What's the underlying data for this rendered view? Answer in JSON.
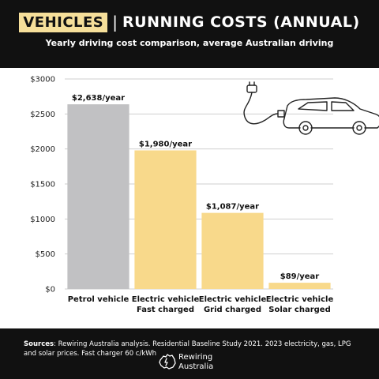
{
  "header": {
    "title_highlight": "VEHICLES",
    "title_separator": "|",
    "title_main": "RUNNING COSTS (ANNUAL)",
    "subtitle": "Yearly driving cost comparison, average Australian driving"
  },
  "colors": {
    "background": "#111111",
    "highlight": "#f6df9a",
    "petrol_bar": "#c1c1c3",
    "ev_bar": "#f8d98b",
    "gridline": "#cfcfcf"
  },
  "icons": [
    "car-with-charging-plug-icon",
    "australia-map-logo-icon"
  ],
  "chart_data": {
    "type": "bar",
    "categories": [
      [
        "Petrol vehicle"
      ],
      [
        "Electric vehicle",
        "Fast charged"
      ],
      [
        "Electric vehicle",
        "Grid charged"
      ],
      [
        "Electric vehicle",
        "Solar charged"
      ]
    ],
    "values": [
      2638,
      1980,
      1087,
      89
    ],
    "data_labels": [
      "$2,638/year",
      "$1,980/year",
      "$1,087/year",
      "$89/year"
    ],
    "bar_colors": [
      "#c1c1c3",
      "#f8d98b",
      "#f8d98b",
      "#f8d98b"
    ],
    "yticks": [
      0,
      500,
      1000,
      1500,
      2000,
      2500,
      3000
    ],
    "ytick_labels": [
      "$0",
      "$500",
      "$1000",
      "$1500",
      "$2000",
      "$2500",
      "$3000"
    ],
    "ylim": [
      0,
      3000
    ],
    "grid": true,
    "legend": "none"
  },
  "footer": {
    "sources_label": "Sources",
    "sources_text": ": Rewiring Australia analysis. Residential Baseline Study 2021. 2023 electricity, gas, LPG and solar prices. Fast charger 60 c/kWh",
    "logo_line1": "Rewiring",
    "logo_line2": "Australia"
  }
}
